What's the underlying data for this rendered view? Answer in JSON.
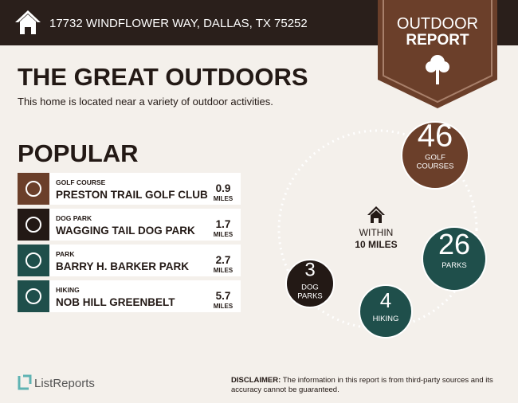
{
  "header": {
    "address": "17732 WINDFLOWER WAY, DALLAS, TX 75252"
  },
  "badge": {
    "line1": "OUTDOOR",
    "line2": "REPORT"
  },
  "title": "THE GREAT OUTDOORS",
  "subtitle": "This home is located near a variety of outdoor activities.",
  "popular": {
    "heading": "POPULAR",
    "items": [
      {
        "category": "GOLF COURSE",
        "name": "PRESTON TRAIL GOLF CLUB",
        "distance": 0.9,
        "unit": "MILES"
      },
      {
        "category": "DOG PARK",
        "name": "WAGGING TAIL DOG PARK",
        "distance": 1.7,
        "unit": "MILES"
      },
      {
        "category": "PARK",
        "name": "BARRY H. BARKER PARK",
        "distance": 2.7,
        "unit": "MILES"
      },
      {
        "category": "HIKING",
        "name": "NOB HILL GREENBELT",
        "distance": 5.7,
        "unit": "MILES"
      }
    ]
  },
  "radius": {
    "line1": "WITHIN",
    "line2": "10 MILES"
  },
  "bubbles": [
    {
      "count": 46,
      "label": [
        "GOLF",
        "COURSES"
      ]
    },
    {
      "count": 26,
      "label": [
        "PARKS"
      ]
    },
    {
      "count": 4,
      "label": [
        "HIKING"
      ]
    },
    {
      "count": 3,
      "label": [
        "DOG",
        "PARKS"
      ]
    }
  ],
  "footer": {
    "brand": "ListReports",
    "disclaimer_label": "DISCLAIMER:",
    "disclaimer_lines": [
      "The information in this report is from third-party sources and its",
      "accuracy cannot be guaranteed."
    ]
  }
}
